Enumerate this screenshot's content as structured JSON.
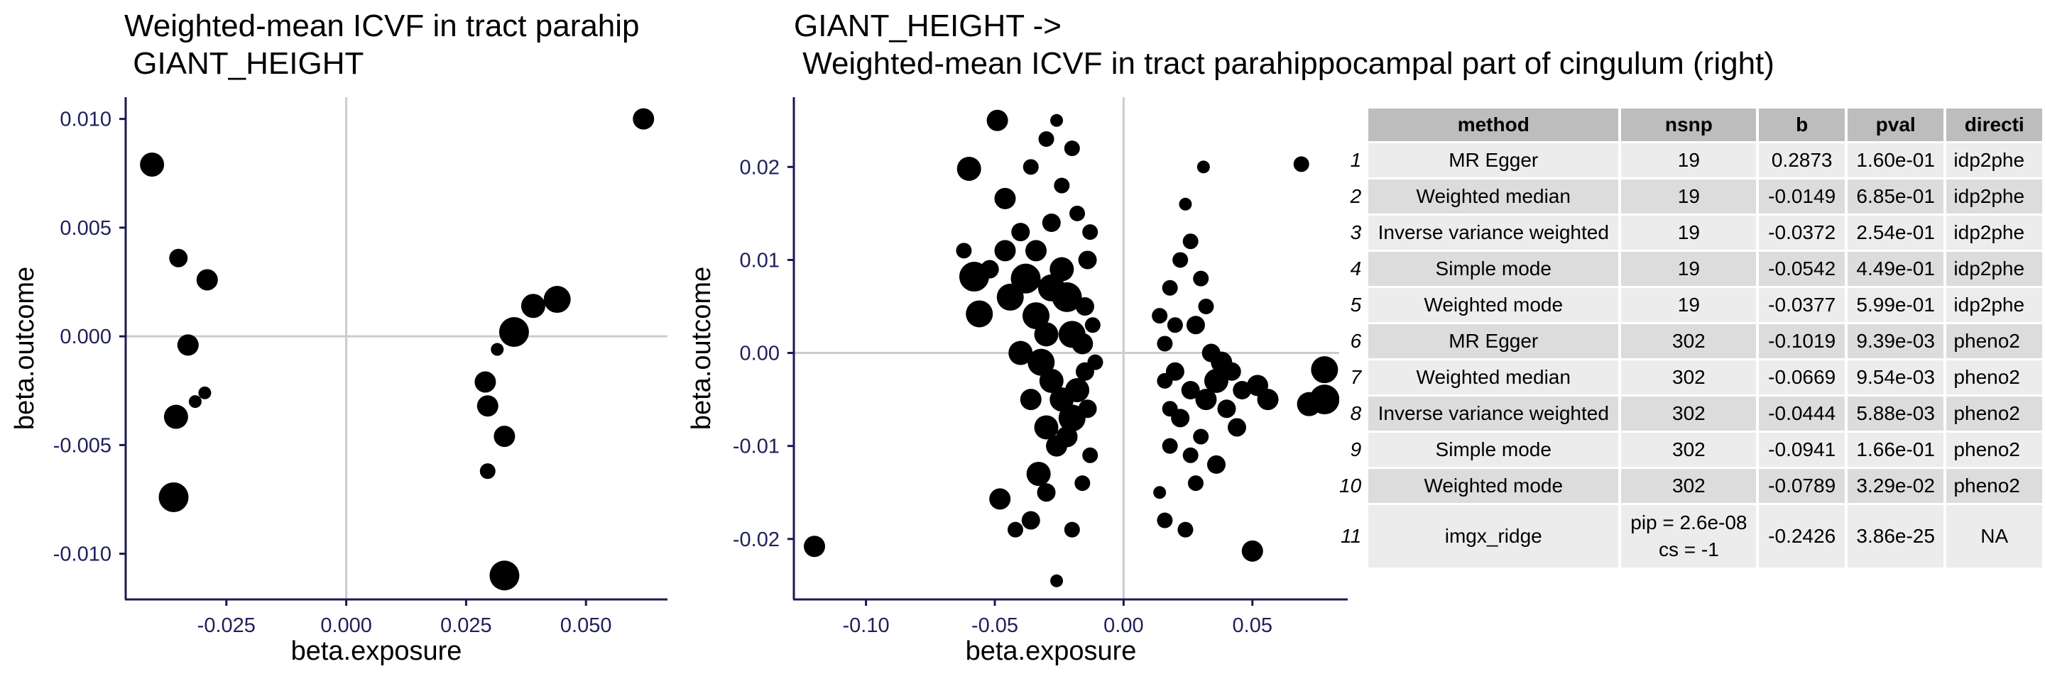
{
  "charts": [
    {
      "title_line1": "Weighted-mean ICVF in tract parahip",
      "title_line2": " GIANT_HEIGHT",
      "xlabel": "beta.exposure",
      "ylabel": "beta.outcome",
      "xticks": [
        "-0.025",
        "0.000",
        "0.025",
        "0.050"
      ],
      "yticks": [
        "-0.010",
        "-0.005",
        "0.000",
        "0.005",
        "0.010"
      ]
    },
    {
      "title_line1": "GIANT_HEIGHT ->",
      "title_line2": " Weighted-mean ICVF in tract parahippocampal part of cingulum (right)",
      "xlabel": "beta.exposure",
      "ylabel": "beta.outcome",
      "xticks": [
        "-0.10",
        "-0.05",
        "0.00",
        "0.05"
      ],
      "yticks": [
        "-0.02",
        "-0.01",
        "0.00",
        "0.01",
        "0.02"
      ]
    }
  ],
  "chart_data": [
    {
      "type": "scatter",
      "title": "Weighted-mean ICVF in tract parahip\n GIANT_HEIGHT",
      "xlabel": "beta.exposure",
      "ylabel": "beta.outcome",
      "xlim": [
        -0.046,
        0.067
      ],
      "ylim": [
        -0.0121,
        0.011
      ],
      "reference_lines": {
        "x": 0,
        "y": 0
      },
      "grid": false,
      "points": [
        {
          "x": -0.0405,
          "y": 0.0079,
          "w": 3
        },
        {
          "x": -0.035,
          "y": 0.0036,
          "w": 2
        },
        {
          "x": -0.029,
          "y": 0.0026,
          "w": 2.5
        },
        {
          "x": -0.033,
          "y": -0.0004,
          "w": 2.5
        },
        {
          "x": -0.0295,
          "y": -0.0026,
          "w": 1
        },
        {
          "x": -0.0315,
          "y": -0.003,
          "w": 1
        },
        {
          "x": -0.0355,
          "y": -0.0037,
          "w": 3
        },
        {
          "x": -0.036,
          "y": -0.0074,
          "w": 4
        },
        {
          "x": 0.062,
          "y": 0.01,
          "w": 2.5
        },
        {
          "x": 0.044,
          "y": 0.0017,
          "w": 3.5
        },
        {
          "x": 0.039,
          "y": 0.0014,
          "w": 3
        },
        {
          "x": 0.035,
          "y": 0.0002,
          "w": 4
        },
        {
          "x": 0.0315,
          "y": -0.0006,
          "w": 1
        },
        {
          "x": 0.029,
          "y": -0.0021,
          "w": 2.5
        },
        {
          "x": 0.0295,
          "y": -0.0032,
          "w": 2.5
        },
        {
          "x": 0.033,
          "y": -0.0046,
          "w": 2.5
        },
        {
          "x": 0.0295,
          "y": -0.0062,
          "w": 1.5
        },
        {
          "x": 0.033,
          "y": -0.011,
          "w": 4
        }
      ]
    },
    {
      "type": "scatter",
      "title": "GIANT_HEIGHT ->\n Weighted-mean ICVF in tract parahippocampal part of cingulum (right)",
      "xlabel": "beta.exposure",
      "ylabel": "beta.outcome",
      "xlim": [
        -0.128,
        0.087
      ],
      "ylim": [
        -0.0265,
        0.0275
      ],
      "reference_lines": {
        "x": 0,
        "y": 0
      },
      "grid": false,
      "points": [
        {
          "x": -0.12,
          "y": -0.0208,
          "w": 2.5
        },
        {
          "x": -0.049,
          "y": 0.025,
          "w": 2.5
        },
        {
          "x": -0.06,
          "y": 0.0198,
          "w": 3
        },
        {
          "x": -0.046,
          "y": 0.0166,
          "w": 2.5
        },
        {
          "x": -0.058,
          "y": 0.0082,
          "w": 4
        },
        {
          "x": -0.056,
          "y": 0.0042,
          "w": 3.5
        },
        {
          "x": -0.044,
          "y": 0.006,
          "w": 3.5
        },
        {
          "x": -0.046,
          "y": 0.011,
          "w": 2.5
        },
        {
          "x": -0.048,
          "y": -0.0157,
          "w": 2.5
        },
        {
          "x": -0.042,
          "y": -0.019,
          "w": 1.5
        },
        {
          "x": -0.033,
          "y": -0.013,
          "w": 3
        },
        {
          "x": -0.03,
          "y": -0.015,
          "w": 2
        },
        {
          "x": -0.036,
          "y": -0.018,
          "w": 2
        },
        {
          "x": -0.038,
          "y": 0.008,
          "w": 4
        },
        {
          "x": -0.034,
          "y": 0.004,
          "w": 3.5
        },
        {
          "x": -0.03,
          "y": 0.002,
          "w": 3
        },
        {
          "x": -0.028,
          "y": 0.007,
          "w": 3.5
        },
        {
          "x": -0.024,
          "y": 0.009,
          "w": 3
        },
        {
          "x": -0.022,
          "y": 0.006,
          "w": 4
        },
        {
          "x": -0.02,
          "y": 0.002,
          "w": 3.5
        },
        {
          "x": -0.032,
          "y": -0.001,
          "w": 3.5
        },
        {
          "x": -0.028,
          "y": -0.003,
          "w": 3
        },
        {
          "x": -0.024,
          "y": -0.005,
          "w": 3
        },
        {
          "x": -0.02,
          "y": -0.007,
          "w": 3.5
        },
        {
          "x": -0.03,
          "y": -0.008,
          "w": 3
        },
        {
          "x": -0.026,
          "y": -0.01,
          "w": 2.5
        },
        {
          "x": -0.022,
          "y": -0.009,
          "w": 2.5
        },
        {
          "x": -0.018,
          "y": -0.004,
          "w": 3
        },
        {
          "x": -0.016,
          "y": 0.001,
          "w": 2.5
        },
        {
          "x": -0.015,
          "y": 0.005,
          "w": 2
        },
        {
          "x": -0.014,
          "y": 0.01,
          "w": 2
        },
        {
          "x": -0.013,
          "y": 0.013,
          "w": 1.5
        },
        {
          "x": -0.015,
          "y": -0.002,
          "w": 2
        },
        {
          "x": -0.014,
          "y": -0.006,
          "w": 2
        },
        {
          "x": -0.013,
          "y": -0.011,
          "w": 1.5
        },
        {
          "x": -0.016,
          "y": -0.014,
          "w": 1.5
        },
        {
          "x": -0.012,
          "y": 0.003,
          "w": 1.5
        },
        {
          "x": -0.011,
          "y": -0.001,
          "w": 1.5
        },
        {
          "x": -0.04,
          "y": 0.013,
          "w": 2
        },
        {
          "x": -0.036,
          "y": 0.02,
          "w": 1.5
        },
        {
          "x": -0.03,
          "y": 0.023,
          "w": 1.5
        },
        {
          "x": -0.026,
          "y": 0.025,
          "w": 1
        },
        {
          "x": -0.02,
          "y": 0.022,
          "w": 1.5
        },
        {
          "x": -0.024,
          "y": 0.018,
          "w": 1.5
        },
        {
          "x": -0.018,
          "y": 0.015,
          "w": 1.5
        },
        {
          "x": -0.028,
          "y": 0.014,
          "w": 2
        },
        {
          "x": -0.034,
          "y": 0.011,
          "w": 2.5
        },
        {
          "x": -0.04,
          "y": 0.0,
          "w": 3
        },
        {
          "x": -0.036,
          "y": -0.005,
          "w": 2.5
        },
        {
          "x": -0.026,
          "y": -0.0245,
          "w": 1
        },
        {
          "x": -0.02,
          "y": -0.019,
          "w": 1.5
        },
        {
          "x": -0.062,
          "y": 0.011,
          "w": 1.5
        },
        {
          "x": -0.052,
          "y": 0.009,
          "w": 2
        },
        {
          "x": 0.05,
          "y": -0.0213,
          "w": 2.5
        },
        {
          "x": 0.069,
          "y": 0.0203,
          "w": 1.5
        },
        {
          "x": 0.078,
          "y": -0.0018,
          "w": 3.5
        },
        {
          "x": 0.078,
          "y": -0.005,
          "w": 4
        },
        {
          "x": 0.072,
          "y": -0.0055,
          "w": 3
        },
        {
          "x": 0.056,
          "y": -0.005,
          "w": 2.5
        },
        {
          "x": 0.052,
          "y": -0.0035,
          "w": 2.5
        },
        {
          "x": 0.046,
          "y": -0.004,
          "w": 2
        },
        {
          "x": 0.04,
          "y": -0.006,
          "w": 2
        },
        {
          "x": 0.036,
          "y": -0.003,
          "w": 3
        },
        {
          "x": 0.032,
          "y": -0.005,
          "w": 2.5
        },
        {
          "x": 0.044,
          "y": -0.008,
          "w": 2
        },
        {
          "x": 0.036,
          "y": -0.012,
          "w": 2
        },
        {
          "x": 0.028,
          "y": -0.014,
          "w": 1.5
        },
        {
          "x": 0.024,
          "y": -0.019,
          "w": 1.5
        },
        {
          "x": 0.016,
          "y": -0.018,
          "w": 1.5
        },
        {
          "x": 0.014,
          "y": -0.015,
          "w": 1
        },
        {
          "x": 0.018,
          "y": -0.01,
          "w": 1.5
        },
        {
          "x": 0.022,
          "y": -0.007,
          "w": 2
        },
        {
          "x": 0.026,
          "y": -0.004,
          "w": 2
        },
        {
          "x": 0.02,
          "y": -0.002,
          "w": 2
        },
        {
          "x": 0.016,
          "y": 0.001,
          "w": 1.5
        },
        {
          "x": 0.014,
          "y": 0.004,
          "w": 1.5
        },
        {
          "x": 0.018,
          "y": 0.007,
          "w": 1.5
        },
        {
          "x": 0.022,
          "y": 0.01,
          "w": 1.5
        },
        {
          "x": 0.026,
          "y": 0.012,
          "w": 1.5
        },
        {
          "x": 0.03,
          "y": 0.008,
          "w": 1.5
        },
        {
          "x": 0.032,
          "y": 0.005,
          "w": 1.5
        },
        {
          "x": 0.028,
          "y": 0.003,
          "w": 2
        },
        {
          "x": 0.024,
          "y": 0.016,
          "w": 1
        },
        {
          "x": 0.031,
          "y": 0.02,
          "w": 1
        },
        {
          "x": 0.034,
          "y": 0.0,
          "w": 2
        },
        {
          "x": 0.038,
          "y": -0.001,
          "w": 2.5
        },
        {
          "x": 0.042,
          "y": -0.002,
          "w": 2
        },
        {
          "x": 0.03,
          "y": -0.009,
          "w": 1.5
        },
        {
          "x": 0.026,
          "y": -0.011,
          "w": 1.5
        },
        {
          "x": 0.018,
          "y": -0.006,
          "w": 1.5
        },
        {
          "x": 0.016,
          "y": -0.003,
          "w": 1.5
        },
        {
          "x": 0.02,
          "y": 0.003,
          "w": 1.5
        }
      ]
    }
  ],
  "table": {
    "headers": [
      "method",
      "nsnp",
      "b",
      "pval",
      "directi"
    ],
    "rows": [
      {
        "n": "1",
        "method": "MR Egger",
        "nsnp": "19",
        "b": "0.2873",
        "pval": "1.60e-01",
        "direction": "idp2phe"
      },
      {
        "n": "2",
        "method": "Weighted median",
        "nsnp": "19",
        "b": "-0.0149",
        "pval": "6.85e-01",
        "direction": "idp2phe"
      },
      {
        "n": "3",
        "method": "Inverse variance weighted",
        "nsnp": "19",
        "b": "-0.0372",
        "pval": "2.54e-01",
        "direction": "idp2phe"
      },
      {
        "n": "4",
        "method": "Simple mode",
        "nsnp": "19",
        "b": "-0.0542",
        "pval": "4.49e-01",
        "direction": "idp2phe"
      },
      {
        "n": "5",
        "method": "Weighted mode",
        "nsnp": "19",
        "b": "-0.0377",
        "pval": "5.99e-01",
        "direction": "idp2phe"
      },
      {
        "n": "6",
        "method": "MR Egger",
        "nsnp": "302",
        "b": "-0.1019",
        "pval": "9.39e-03",
        "direction": "pheno2"
      },
      {
        "n": "7",
        "method": "Weighted median",
        "nsnp": "302",
        "b": "-0.0669",
        "pval": "9.54e-03",
        "direction": "pheno2"
      },
      {
        "n": "8",
        "method": "Inverse variance weighted",
        "nsnp": "302",
        "b": "-0.0444",
        "pval": "5.88e-03",
        "direction": "pheno2"
      },
      {
        "n": "9",
        "method": "Simple mode",
        "nsnp": "302",
        "b": "-0.0941",
        "pval": "1.66e-01",
        "direction": "pheno2"
      },
      {
        "n": "10",
        "method": "Weighted mode",
        "nsnp": "302",
        "b": "-0.0789",
        "pval": "3.29e-02",
        "direction": "pheno2"
      },
      {
        "n": "11",
        "method": "imgx_ridge",
        "nsnp_line1": "pip = 2.6e-08",
        "nsnp_line2": "cs = -1",
        "b": "-0.2426",
        "pval": "3.86e-25",
        "direction": "NA"
      }
    ]
  }
}
